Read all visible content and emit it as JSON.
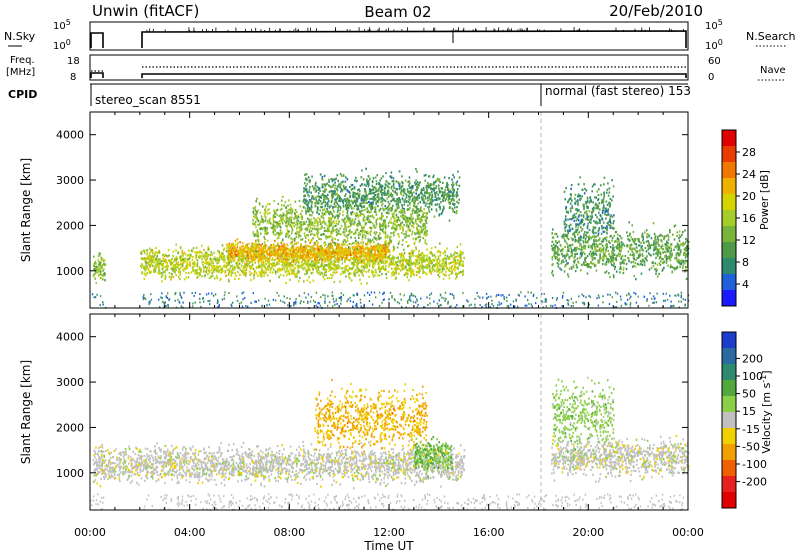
{
  "header": {
    "station": "Unwin (fitACF)",
    "beam": "Beam 02",
    "date": "20/Feb/2010"
  },
  "nsky_panel": {
    "left_label": "N.Sky",
    "right_label": "N.Search",
    "left_ticks": [
      "10^5",
      "10^0"
    ],
    "right_ticks": [
      "10^5",
      "10^0"
    ]
  },
  "freq_panel": {
    "left_label_line1": "Freq.",
    "left_label_line2": "[MHz]",
    "left_ticks": [
      "18",
      "8"
    ],
    "right_ticks": [
      "60",
      "0"
    ],
    "right_label": "Nave"
  },
  "cpid_panel": {
    "label": "CPID",
    "mode1": "stereo_scan 8551",
    "mode2": "normal (fast stereo) 153",
    "switch_hour": 18.05
  },
  "chart_data": [
    {
      "type": "heatmap",
      "name": "power",
      "ylabel": "Slant Range [km]",
      "xlim": [
        0,
        24
      ],
      "ylim": [
        180,
        4500
      ],
      "yticks": [
        "1000",
        "2000",
        "3000",
        "4000"
      ],
      "colorbar": {
        "label": "Power [dB]",
        "range": [
          0,
          32
        ],
        "ticks": [
          "4",
          "8",
          "12",
          "16",
          "20",
          "24",
          "28"
        ],
        "colors": [
          "#1a1aff",
          "#2060d8",
          "#2e8a6e",
          "#4f9a48",
          "#79b43a",
          "#a6cc2a",
          "#d4d400",
          "#f0b000",
          "#f07800",
          "#e83c00",
          "#e00000"
        ]
      },
      "scatter_features": [
        {
          "hour_start": 0.1,
          "hour_end": 0.6,
          "range_center": 1060,
          "range_width": 380,
          "power_db": 14
        },
        {
          "hour_start": 2.0,
          "hour_end": 15.0,
          "range_center": 1200,
          "range_width": 500,
          "power_db": 17
        },
        {
          "hour_start": 5.5,
          "hour_end": 12.0,
          "range_center": 1450,
          "range_width": 300,
          "power_db": 22
        },
        {
          "hour_start": 6.5,
          "hour_end": 13.5,
          "range_center": 2050,
          "range_width": 700,
          "power_db": 14
        },
        {
          "hour_start": 8.5,
          "hour_end": 14.8,
          "range_center": 2700,
          "range_width": 650,
          "power_db": 9
        },
        {
          "hour_start": 18.5,
          "hour_end": 24.0,
          "range_center": 1450,
          "range_width": 700,
          "power_db": 11
        },
        {
          "hour_start": 19.0,
          "hour_end": 21.0,
          "range_center": 2300,
          "range_width": 900,
          "power_db": 8
        }
      ]
    },
    {
      "type": "heatmap",
      "name": "velocity",
      "xlabel": "Time UT",
      "ylabel": "Slant Range [km]",
      "xlim": [
        0,
        24
      ],
      "ylim": [
        180,
        4500
      ],
      "yticks": [
        "1000",
        "2000",
        "3000",
        "4000"
      ],
      "xticks": [
        "00:00",
        "04:00",
        "08:00",
        "12:00",
        "16:00",
        "20:00",
        "00:00"
      ],
      "colorbar": {
        "label": "Velocity [m s^-1]",
        "ticks": [
          "200",
          "100",
          "50",
          "15",
          "-15",
          "-50",
          "-100",
          "-200"
        ],
        "colors": [
          "#1c3ccc",
          "#2a6aa0",
          "#2e8a6e",
          "#52a83c",
          "#8cd04a",
          "#c0c0c0",
          "#f0d000",
          "#f0a000",
          "#f06000",
          "#e82020",
          "#e00000"
        ]
      },
      "scatter_features": [
        {
          "hour_start": 0.1,
          "hour_end": 15.0,
          "range_center": 1200,
          "range_width": 550,
          "velocity_ms": 0
        },
        {
          "hour_start": 9.0,
          "hour_end": 13.5,
          "range_center": 2200,
          "range_width": 900,
          "velocity_ms": -60
        },
        {
          "hour_start": 13.0,
          "hour_end": 14.5,
          "range_center": 1400,
          "range_width": 500,
          "velocity_ms": 60
        },
        {
          "hour_start": 18.5,
          "hour_end": 24.0,
          "range_center": 1350,
          "range_width": 550,
          "velocity_ms": 0
        },
        {
          "hour_start": 18.5,
          "hour_end": 21.0,
          "range_center": 2300,
          "range_width": 1000,
          "velocity_ms": 40
        }
      ]
    }
  ]
}
